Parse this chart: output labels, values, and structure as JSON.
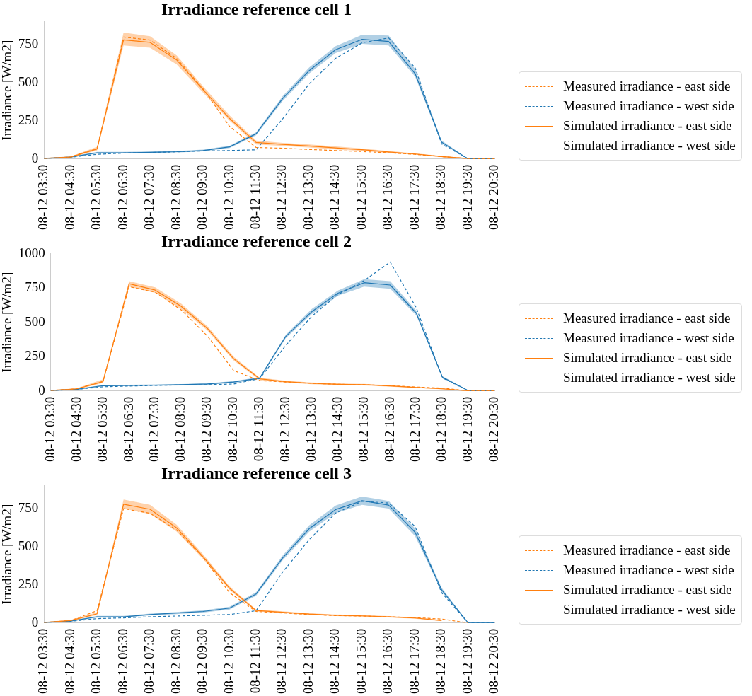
{
  "chart_data": [
    {
      "type": "line",
      "title": "Irradiance reference cell 1",
      "ylabel": "Irradiance [W/m2]",
      "categories": [
        "08-12 03:30",
        "08-12 04:30",
        "08-12 05:30",
        "08-12 06:30",
        "08-12 07:30",
        "08-12 08:30",
        "08-12 09:30",
        "08-12 10:30",
        "08-12 11:30",
        "08-12 12:30",
        "08-12 13:30",
        "08-12 14:30",
        "08-12 15:30",
        "08-12 16:30",
        "08-12 17:30",
        "08-12 18:30",
        "08-12 19:30",
        "08-12 20:30"
      ],
      "ylim": [
        0,
        900
      ],
      "yticks": [
        0,
        250,
        500,
        750
      ],
      "grid": false,
      "legend": "right",
      "marker": "none",
      "series": [
        {
          "name": "Measured irradiance - east side",
          "color": "#ff7f0e",
          "line_style": "dashed",
          "values": [
            3,
            12,
            70,
            800,
            780,
            660,
            460,
            213,
            75,
            70,
            62,
            55,
            48,
            40,
            30,
            15,
            2,
            0
          ]
        },
        {
          "name": "Measured irradiance - west side",
          "color": "#1f77b4",
          "line_style": "dashed",
          "values": [
            3,
            10,
            30,
            38,
            42,
            46,
            52,
            55,
            60,
            262,
            492,
            660,
            762,
            794,
            598,
            98,
            0,
            0
          ]
        },
        {
          "name": "Simulated irradiance - east side",
          "color": "#ff7f0e",
          "line_style": "solid",
          "values": [
            3,
            12,
            65,
            781,
            765,
            650,
            454,
            265,
            108,
            95,
            85,
            72,
            60,
            45,
            32,
            15,
            2,
            0
          ],
          "lower": [
            1,
            9,
            55,
            745,
            730,
            620,
            435,
            250,
            95,
            85,
            75,
            62,
            52,
            38,
            27,
            11,
            0,
            0
          ],
          "upper": [
            6,
            16,
            80,
            830,
            805,
            680,
            475,
            285,
            120,
            105,
            95,
            82,
            68,
            52,
            37,
            19,
            4,
            0
          ]
        },
        {
          "name": "Simulated irradiance - west side",
          "color": "#1f77b4",
          "line_style": "solid",
          "values": [
            3,
            12,
            40,
            40,
            43,
            47,
            55,
            79,
            165,
            396,
            579,
            717,
            785,
            771,
            560,
            110,
            0,
            0
          ],
          "lower": [
            1,
            9,
            34,
            35,
            38,
            42,
            49,
            72,
            155,
            380,
            560,
            695,
            755,
            745,
            540,
            100,
            0,
            0
          ],
          "upper": [
            6,
            16,
            46,
            46,
            48,
            52,
            61,
            87,
            175,
            412,
            600,
            740,
            815,
            810,
            590,
            120,
            2,
            2
          ]
        }
      ]
    },
    {
      "type": "line",
      "title": "Irradiance reference cell 2",
      "ylabel": "Irradiance [W/m2]",
      "categories": [
        "08-12 03:30",
        "08-12 04:30",
        "08-12 05:30",
        "08-12 06:30",
        "08-12 07:30",
        "08-12 08:30",
        "08-12 09:30",
        "08-12 10:30",
        "08-12 11:30",
        "08-12 12:30",
        "08-12 13:30",
        "08-12 14:30",
        "08-12 15:30",
        "08-12 16:30",
        "08-12 17:30",
        "08-12 18:30",
        "08-12 19:30",
        "08-12 20:30"
      ],
      "ylim": [
        0,
        1000
      ],
      "yticks": [
        0,
        250,
        500,
        750,
        1000
      ],
      "grid": false,
      "legend": "right",
      "marker": "none",
      "series": [
        {
          "name": "Measured irradiance - east side",
          "color": "#ff7f0e",
          "line_style": "dashed",
          "values": [
            3,
            15,
            70,
            760,
            720,
            590,
            400,
            149,
            75,
            65,
            55,
            48,
            45,
            38,
            28,
            20,
            0,
            0
          ]
        },
        {
          "name": "Measured irradiance - west side",
          "color": "#1f77b4",
          "line_style": "dashed",
          "values": [
            3,
            10,
            30,
            35,
            40,
            43,
            45,
            50,
            90,
            332,
            545,
            703,
            804,
            940,
            606,
            95,
            0,
            0
          ]
        },
        {
          "name": "Simulated irradiance - east side",
          "color": "#ff7f0e",
          "line_style": "solid",
          "values": [
            3,
            15,
            67,
            782,
            735,
            616,
            455,
            235,
            88,
            67,
            55,
            48,
            45,
            36,
            25,
            15,
            0,
            0
          ],
          "lower": [
            1,
            11,
            58,
            760,
            715,
            595,
            440,
            222,
            80,
            60,
            49,
            42,
            39,
            31,
            21,
            11,
            0,
            0
          ],
          "upper": [
            6,
            19,
            85,
            800,
            755,
            635,
            472,
            250,
            96,
            74,
            61,
            54,
            51,
            41,
            29,
            19,
            2,
            2
          ]
        },
        {
          "name": "Simulated irradiance - west side",
          "color": "#1f77b4",
          "line_style": "solid",
          "values": [
            3,
            12,
            38,
            40,
            42,
            45,
            50,
            65,
            93,
            397,
            578,
            713,
            789,
            772,
            567,
            100,
            0,
            0
          ],
          "lower": [
            1,
            9,
            33,
            35,
            37,
            40,
            45,
            58,
            86,
            385,
            560,
            695,
            760,
            745,
            550,
            92,
            0,
            0
          ],
          "upper": [
            6,
            15,
            43,
            45,
            47,
            50,
            55,
            72,
            100,
            410,
            598,
            732,
            815,
            800,
            585,
            108,
            2,
            2
          ]
        }
      ]
    },
    {
      "type": "line",
      "title": "Irradiance reference cell 3",
      "ylabel": "Irradiance [W/m2]",
      "categories": [
        "08-12 03:30",
        "08-12 04:30",
        "08-12 05:30",
        "08-12 06:30",
        "08-12 07:30",
        "08-12 08:30",
        "08-12 09:30",
        "08-12 10:30",
        "08-12 11:30",
        "08-12 12:30",
        "08-12 13:30",
        "08-12 14:30",
        "08-12 15:30",
        "08-12 16:30",
        "08-12 17:30",
        "08-12 18:30",
        "08-12 19:30",
        "08-12 20:30"
      ],
      "ylim": [
        0,
        900
      ],
      "yticks": [
        0,
        250,
        500,
        750
      ],
      "grid": false,
      "legend": "right",
      "marker": "none",
      "series": [
        {
          "name": "Measured irradiance - east side",
          "color": "#ff7f0e",
          "line_style": "dashed",
          "values": [
            3,
            15,
            80,
            750,
            720,
            610,
            430,
            198,
            75,
            65,
            55,
            48,
            45,
            40,
            35,
            25,
            0,
            null
          ]
        },
        {
          "name": "Measured irradiance - west side",
          "color": "#1f77b4",
          "line_style": "dashed",
          "values": [
            3,
            10,
            28,
            33,
            40,
            45,
            50,
            55,
            80,
            333,
            546,
            721,
            798,
            787,
            633,
            198,
            0,
            0
          ]
        },
        {
          "name": "Simulated irradiance - east side",
          "color": "#ff7f0e",
          "line_style": "solid",
          "values": [
            3,
            15,
            60,
            779,
            746,
            624,
            434,
            227,
            81,
            70,
            58,
            50,
            46,
            40,
            32,
            15,
            null,
            null
          ],
          "lower": [
            1,
            11,
            52,
            750,
            715,
            600,
            420,
            215,
            75,
            64,
            53,
            45,
            41,
            35,
            27,
            11,
            null,
            null
          ],
          "upper": [
            6,
            19,
            70,
            810,
            775,
            645,
            450,
            240,
            88,
            76,
            63,
            55,
            51,
            45,
            37,
            19,
            null,
            null
          ]
        },
        {
          "name": "Simulated irradiance - west side",
          "color": "#1f77b4",
          "line_style": "solid",
          "values": [
            3,
            12,
            40,
            40,
            55,
            65,
            75,
            97,
            190,
            426,
            618,
            744,
            802,
            773,
            595,
            217,
            0,
            0
          ],
          "lower": [
            1,
            9,
            34,
            35,
            49,
            58,
            68,
            88,
            178,
            410,
            598,
            720,
            775,
            750,
            570,
            205,
            0,
            0
          ],
          "upper": [
            6,
            15,
            46,
            46,
            61,
            72,
            82,
            106,
            202,
            442,
            640,
            770,
            830,
            800,
            620,
            230,
            2,
            2
          ]
        }
      ]
    }
  ]
}
